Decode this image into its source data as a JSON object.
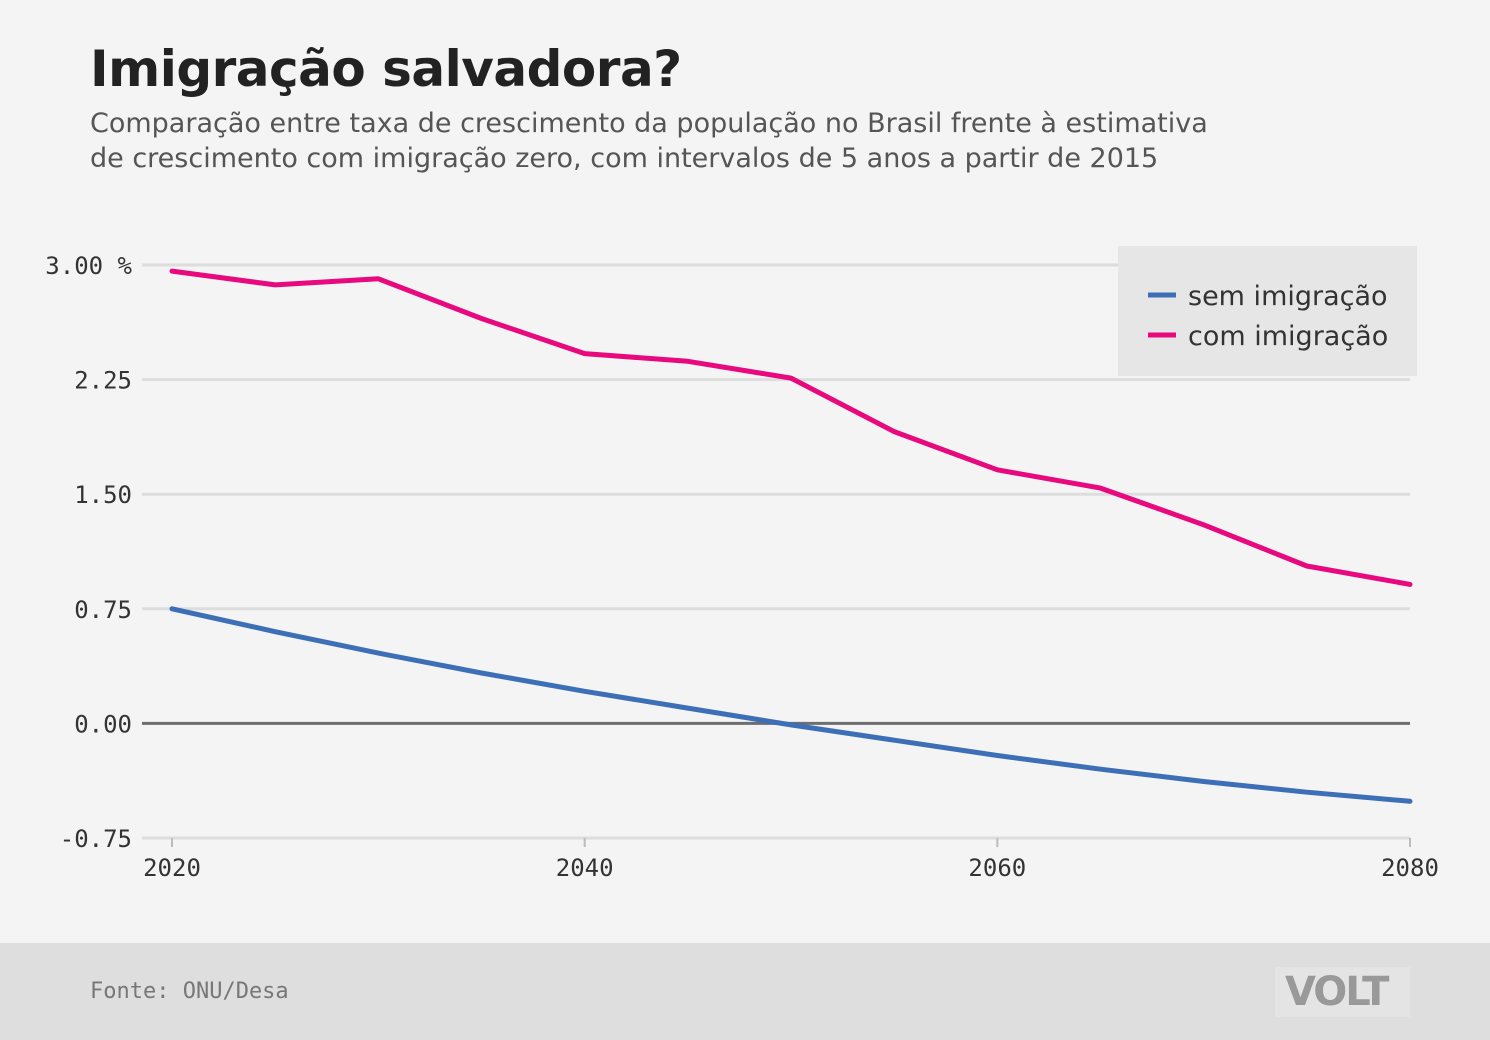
{
  "header": {
    "title": "Imigração salvadora?",
    "subtitle_lines": [
      "Comparação entre taxa de crescimento da população no Brasil frente à estimativa",
      "de crescimento com imigração zero, com intervalos de 5 anos a partir de 2015"
    ]
  },
  "footer": {
    "source": "Fonte: ONU/Desa",
    "logo": "VOLT"
  },
  "chart_data": {
    "type": "line",
    "title": "Imigração salvadora?",
    "subtitle": "Comparação entre taxa de crescimento da população no Brasil frente à estimativa de crescimento com imigração zero, com intervalos de 5 anos a partir de 2015",
    "xlabel": "",
    "ylabel": "",
    "y_unit": "%",
    "xlim": [
      2020,
      2080
    ],
    "ylim": [
      -0.75,
      3.0
    ],
    "x_ticks": [
      2020,
      2040,
      2060,
      2080
    ],
    "y_ticks": [
      3.0,
      2.25,
      1.5,
      0.75,
      0.0,
      -0.75
    ],
    "y_tick_labels": [
      "3.00 %",
      "2.25",
      "1.50",
      "0.75",
      "0.00",
      "-0.75"
    ],
    "grid": true,
    "legend_position": "top-right",
    "x": [
      2020,
      2025,
      2030,
      2035,
      2040,
      2045,
      2050,
      2055,
      2060,
      2065,
      2070,
      2075,
      2080
    ],
    "series": [
      {
        "name": "sem imigração",
        "color": "#3d6fb6",
        "values": [
          0.75,
          0.6,
          0.46,
          0.33,
          0.21,
          0.1,
          -0.01,
          -0.11,
          -0.21,
          -0.3,
          -0.38,
          -0.45,
          -0.51
        ]
      },
      {
        "name": "com imigração",
        "color": "#e8097e",
        "values": [
          2.96,
          2.87,
          2.91,
          2.65,
          2.42,
          2.37,
          2.26,
          1.91,
          1.66,
          1.54,
          1.3,
          1.03,
          0.91
        ]
      }
    ]
  }
}
